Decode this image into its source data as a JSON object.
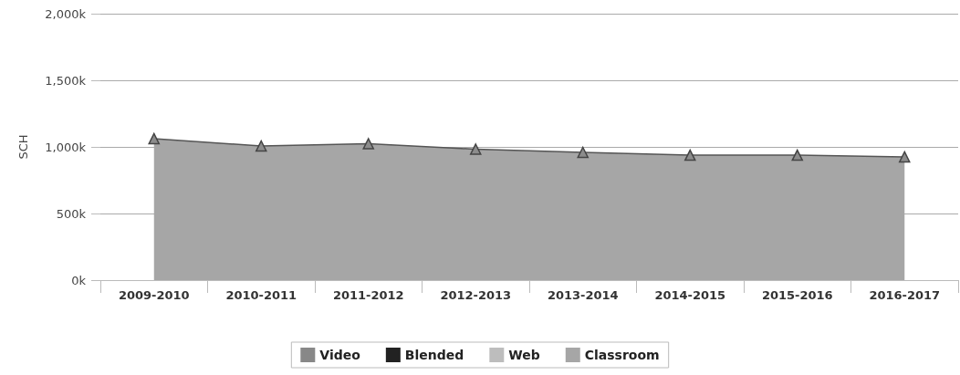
{
  "chart_data": {
    "type": "area",
    "ylabel": "SCH",
    "categories": [
      "2009-2010",
      "2010-2011",
      "2011-2012",
      "2012-2013",
      "2013-2014",
      "2014-2015",
      "2015-2016",
      "2016-2017"
    ],
    "series": [
      {
        "name": "Video",
        "color": "#888888",
        "values": [
          null,
          null,
          null,
          null,
          null,
          null,
          null,
          null
        ]
      },
      {
        "name": "Blended",
        "color": "#222222",
        "values": [
          null,
          null,
          null,
          null,
          null,
          null,
          null,
          null
        ]
      },
      {
        "name": "Web",
        "color": "#bdbdbd",
        "values": [
          null,
          null,
          null,
          null,
          null,
          null,
          null,
          null
        ]
      },
      {
        "name": "Classroom",
        "color": "#a6a6a6",
        "values": [
          1062,
          1007,
          1024,
          983,
          959,
          938,
          938,
          925
        ]
      }
    ],
    "ylim": [
      0,
      2000
    ],
    "yticks": [
      {
        "value": 0,
        "label": "0k"
      },
      {
        "value": 500,
        "label": "500k"
      },
      {
        "value": 1000,
        "label": "1,000k"
      },
      {
        "value": 1500,
        "label": "1,500k"
      },
      {
        "value": 2000,
        "label": "2,000k"
      }
    ],
    "grid": "y",
    "legend": "bottom",
    "marker": "triangle",
    "line_style": "solid"
  }
}
